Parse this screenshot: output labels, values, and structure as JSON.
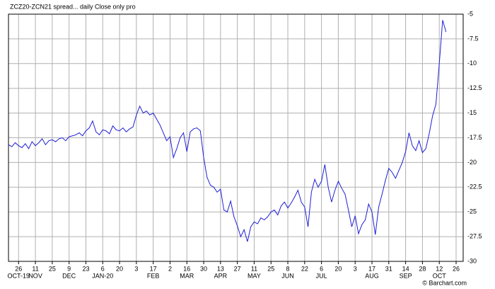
{
  "chart_data": {
    "type": "line",
    "title": "ZCZ20-ZCN21 spread... daily Close only pro",
    "footer": "© Barchart.com",
    "categories": [
      null,
      null,
      null,
      "26",
      null,
      null,
      null,
      null,
      "11",
      null,
      null,
      null,
      null,
      "25",
      null,
      null,
      null,
      null,
      "9",
      null,
      null,
      null,
      null,
      "23",
      null,
      null,
      null,
      null,
      "6",
      null,
      null,
      null,
      null,
      "20",
      null,
      null,
      null,
      null,
      "3",
      null,
      null,
      null,
      null,
      "17",
      null,
      null,
      null,
      null,
      "2",
      null,
      null,
      null,
      null,
      "16",
      null,
      null,
      null,
      null,
      "30",
      null,
      null,
      null,
      null,
      "13",
      null,
      null,
      null,
      null,
      "27",
      null,
      null,
      null,
      null,
      "11",
      null,
      null,
      null,
      null,
      "25",
      null,
      null,
      null,
      null,
      "8",
      null,
      null,
      null,
      null,
      "22",
      null,
      null,
      null,
      null,
      "6",
      null,
      null,
      null,
      null,
      "20",
      null,
      null,
      null,
      null,
      "3",
      null,
      null,
      null,
      null,
      "17",
      null,
      null,
      null,
      null,
      "31",
      null,
      null,
      null,
      null,
      "14",
      null,
      null,
      null,
      null,
      "28",
      null,
      null,
      null,
      null,
      "12",
      null,
      null,
      null,
      null,
      "26"
    ],
    "month_labels": [
      null,
      null,
      null,
      "OCT-19",
      null,
      null,
      null,
      null,
      "NOV",
      null,
      null,
      null,
      null,
      null,
      null,
      null,
      null,
      null,
      "DEC",
      null,
      null,
      null,
      null,
      null,
      null,
      null,
      null,
      null,
      "JAN-20",
      null,
      null,
      null,
      null,
      null,
      null,
      null,
      null,
      null,
      null,
      null,
      null,
      null,
      null,
      "FEB",
      null,
      null,
      null,
      null,
      null,
      null,
      null,
      null,
      null,
      "MAR",
      null,
      null,
      null,
      null,
      null,
      null,
      null,
      null,
      null,
      "APR",
      null,
      null,
      null,
      null,
      null,
      null,
      null,
      null,
      null,
      "MAY",
      null,
      null,
      null,
      null,
      null,
      null,
      null,
      null,
      null,
      "JUN",
      null,
      null,
      null,
      null,
      null,
      null,
      null,
      null,
      null,
      "JUL",
      null,
      null,
      null,
      null,
      null,
      null,
      null,
      null,
      null,
      null,
      null,
      null,
      null,
      null,
      "AUG",
      null,
      null,
      null,
      null,
      null,
      null,
      null,
      null,
      null,
      "SEP",
      null,
      null,
      null,
      null,
      null,
      null,
      null,
      null,
      null,
      "OCT",
      null,
      null,
      null,
      null,
      null
    ],
    "series": [
      {
        "name": "ZCZ20-ZCN21",
        "color": "#1f1fd6",
        "values": [
          -18.2,
          -18.4,
          -18.0,
          -18.3,
          -18.5,
          -18.1,
          -18.6,
          -17.9,
          -18.3,
          -18.0,
          -17.6,
          -18.2,
          -17.8,
          -17.7,
          -17.9,
          -17.6,
          -17.5,
          -17.8,
          -17.4,
          -17.3,
          -17.2,
          -17.0,
          -17.3,
          -16.8,
          -16.5,
          -15.8,
          -16.9,
          -17.2,
          -16.7,
          -16.8,
          -17.1,
          -16.3,
          -16.7,
          -16.8,
          -16.5,
          -16.9,
          -16.6,
          -16.4,
          -15.2,
          -14.3,
          -15.0,
          -14.8,
          -15.2,
          -15.0,
          -15.6,
          -16.2,
          -17.0,
          -17.8,
          -17.4,
          -19.5,
          -18.6,
          -17.5,
          -17.0,
          -18.9,
          -16.9,
          -16.6,
          -16.5,
          -16.8,
          -19.5,
          -21.5,
          -22.3,
          -22.5,
          -23.0,
          -22.7,
          -24.8,
          -25.0,
          -23.9,
          -25.5,
          -26.4,
          -27.5,
          -26.8,
          -28.0,
          -26.5,
          -26.0,
          -26.2,
          -25.6,
          -25.8,
          -25.5,
          -25.0,
          -24.8,
          -25.3,
          -24.4,
          -24.0,
          -24.6,
          -24.1,
          -23.5,
          -22.8,
          -24.0,
          -24.5,
          -26.5,
          -23.0,
          -21.7,
          -22.5,
          -21.9,
          -20.2,
          -22.5,
          -24.0,
          -22.8,
          -21.9,
          -22.6,
          -23.2,
          -24.8,
          -26.5,
          -25.4,
          -27.2,
          -26.3,
          -25.8,
          -24.2,
          -25.0,
          -27.3,
          -24.5,
          -23.2,
          -21.8,
          -20.6,
          -21.0,
          -21.6,
          -20.8,
          -20.0,
          -18.9,
          -17.0,
          -18.3,
          -18.8,
          -17.8,
          -19.0,
          -18.6,
          -17.1,
          -15.3,
          -14.1,
          -10.0,
          -5.6,
          -6.8,
          null,
          null,
          null
        ]
      }
    ],
    "ylim": [
      -30,
      -5
    ],
    "yticks": [
      -5,
      -7.5,
      -10,
      -12.5,
      -15,
      -17.5,
      -20,
      -22.5,
      -25,
      -27.5,
      -30
    ],
    "grid": true
  }
}
